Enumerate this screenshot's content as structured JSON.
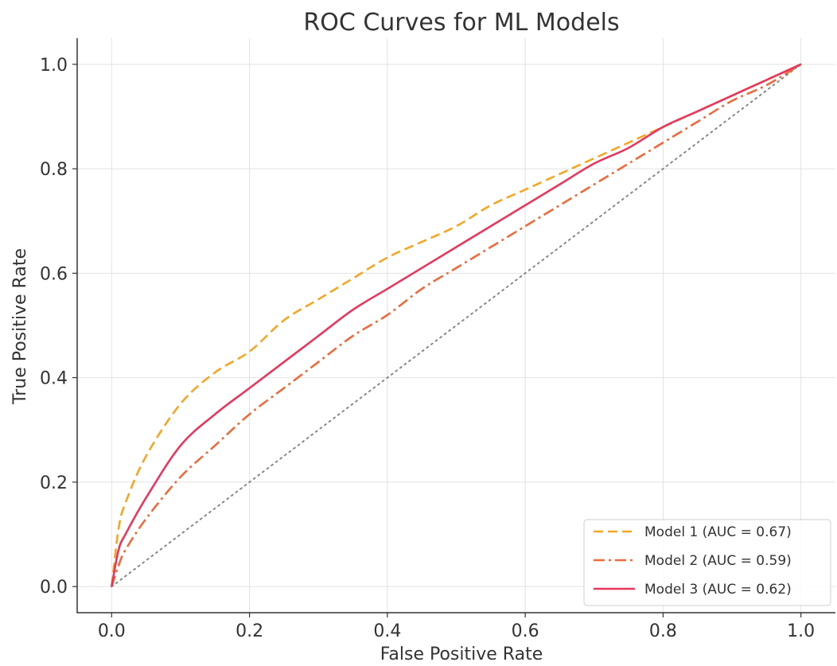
{
  "chart_data": {
    "type": "line",
    "title": "ROC Curves for ML Models",
    "xlabel": "False Positive Rate",
    "ylabel": "True Positive Rate",
    "xlim": [
      -0.05,
      1.05
    ],
    "ylim": [
      -0.05,
      1.05
    ],
    "xticks": [
      "0.0",
      "0.2",
      "0.4",
      "0.6",
      "0.8",
      "1.0"
    ],
    "yticks": [
      "0.0",
      "0.2",
      "0.4",
      "0.6",
      "0.8",
      "1.0"
    ],
    "grid": true,
    "legend_position": "bottom-right",
    "series": [
      {
        "name": "Model 1 (AUC = 0.67)",
        "color": "#f5a623",
        "dash": "dashed",
        "x": [
          0,
          0.01,
          0.02,
          0.05,
          0.1,
          0.15,
          0.2,
          0.25,
          0.3,
          0.35,
          0.4,
          0.45,
          0.5,
          0.55,
          0.6,
          0.65,
          0.7,
          0.75,
          0.8,
          0.85,
          0.9,
          0.95,
          1.0
        ],
        "y": [
          0,
          0.11,
          0.16,
          0.25,
          0.35,
          0.41,
          0.45,
          0.51,
          0.55,
          0.59,
          0.63,
          0.66,
          0.69,
          0.73,
          0.76,
          0.79,
          0.82,
          0.85,
          0.88,
          0.91,
          0.94,
          0.97,
          1.0
        ]
      },
      {
        "name": "Model 2 (AUC = 0.59)",
        "color": "#ee6a3a",
        "dash": "dashdot",
        "x": [
          0,
          0.01,
          0.02,
          0.05,
          0.1,
          0.15,
          0.2,
          0.25,
          0.3,
          0.35,
          0.4,
          0.45,
          0.5,
          0.55,
          0.6,
          0.65,
          0.7,
          0.75,
          0.8,
          0.85,
          0.9,
          0.95,
          1.0
        ],
        "y": [
          0,
          0.04,
          0.07,
          0.13,
          0.21,
          0.27,
          0.33,
          0.38,
          0.43,
          0.48,
          0.52,
          0.57,
          0.61,
          0.65,
          0.69,
          0.73,
          0.77,
          0.81,
          0.85,
          0.89,
          0.93,
          0.96,
          1.0
        ]
      },
      {
        "name": "Model 3 (AUC = 0.62)",
        "color": "#e8365d",
        "dash": "solid",
        "x": [
          0,
          0.01,
          0.02,
          0.05,
          0.1,
          0.15,
          0.2,
          0.25,
          0.3,
          0.35,
          0.4,
          0.45,
          0.5,
          0.55,
          0.6,
          0.65,
          0.7,
          0.75,
          0.8,
          0.85,
          0.9,
          0.95,
          1.0
        ],
        "y": [
          0,
          0.07,
          0.1,
          0.17,
          0.27,
          0.33,
          0.38,
          0.43,
          0.48,
          0.53,
          0.57,
          0.61,
          0.65,
          0.69,
          0.73,
          0.77,
          0.81,
          0.84,
          0.88,
          0.91,
          0.94,
          0.97,
          1.0
        ]
      }
    ],
    "reference_line": {
      "color": "#888888",
      "dash": "dotted",
      "x": [
        0,
        1
      ],
      "y": [
        0,
        1
      ]
    }
  }
}
